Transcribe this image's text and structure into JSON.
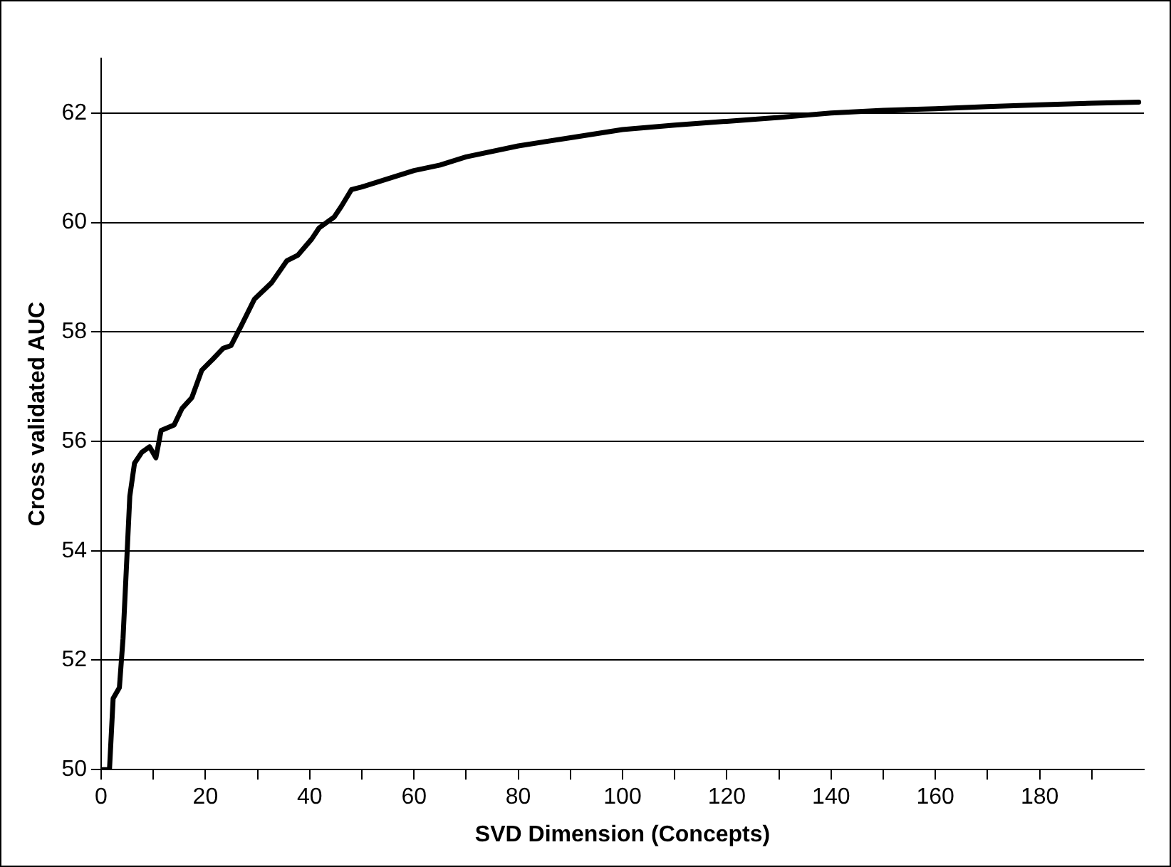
{
  "chart_data": {
    "type": "line",
    "xlabel": "SVD Dimension (Concepts)",
    "ylabel": "Cross validated AUC",
    "x": [
      0,
      1.6,
      2.3,
      3.5,
      4.2,
      5.5,
      6.4,
      7.8,
      9.3,
      10.5,
      11.5,
      14,
      15.5,
      17.4,
      19.3,
      21.4,
      23.4,
      24.9,
      26.8,
      29.4,
      32.7,
      35.6,
      37.7,
      40.4,
      41.8,
      44.7,
      46.1,
      48,
      50,
      55,
      60,
      65,
      70,
      80,
      90,
      100,
      110,
      120,
      130,
      140,
      150,
      160,
      170,
      180,
      190,
      199
    ],
    "series": [
      {
        "color": "#000000",
        "values": [
          50,
          50,
          51.3,
          51.5,
          52.4,
          55.0,
          55.6,
          55.8,
          55.9,
          55.7,
          56.2,
          56.3,
          56.6,
          56.8,
          57.3,
          57.5,
          57.7,
          57.75,
          58.1,
          58.6,
          58.9,
          59.3,
          59.4,
          59.7,
          59.9,
          60.1,
          60.3,
          60.6,
          60.65,
          60.8,
          60.95,
          61.05,
          61.2,
          61.4,
          61.55,
          61.7,
          61.78,
          61.85,
          61.92,
          62.0,
          62.05,
          62.08,
          62.12,
          62.15,
          62.18,
          62.2
        ]
      }
    ],
    "xlim": [
      0,
      200
    ],
    "xticks": [
      0,
      {
        "value": 10,
        "label": null
      },
      20,
      {
        "value": 30,
        "label": null
      },
      40,
      {
        "value": 50,
        "label": null
      },
      60,
      {
        "value": 70,
        "label": null
      },
      80,
      {
        "value": 90,
        "label": null
      },
      100,
      {
        "value": 110,
        "label": null
      },
      120,
      {
        "value": 130,
        "label": null
      },
      140,
      {
        "value": 150,
        "label": null
      },
      160,
      {
        "value": 170,
        "label": null
      },
      180,
      {
        "value": 190,
        "label": null
      }
    ],
    "ylim": [
      50,
      63
    ],
    "yticks": [
      50,
      52,
      54,
      56,
      58,
      60,
      62
    ],
    "grid": "y",
    "legend": false,
    "marker": "none",
    "line_style": "solid"
  }
}
